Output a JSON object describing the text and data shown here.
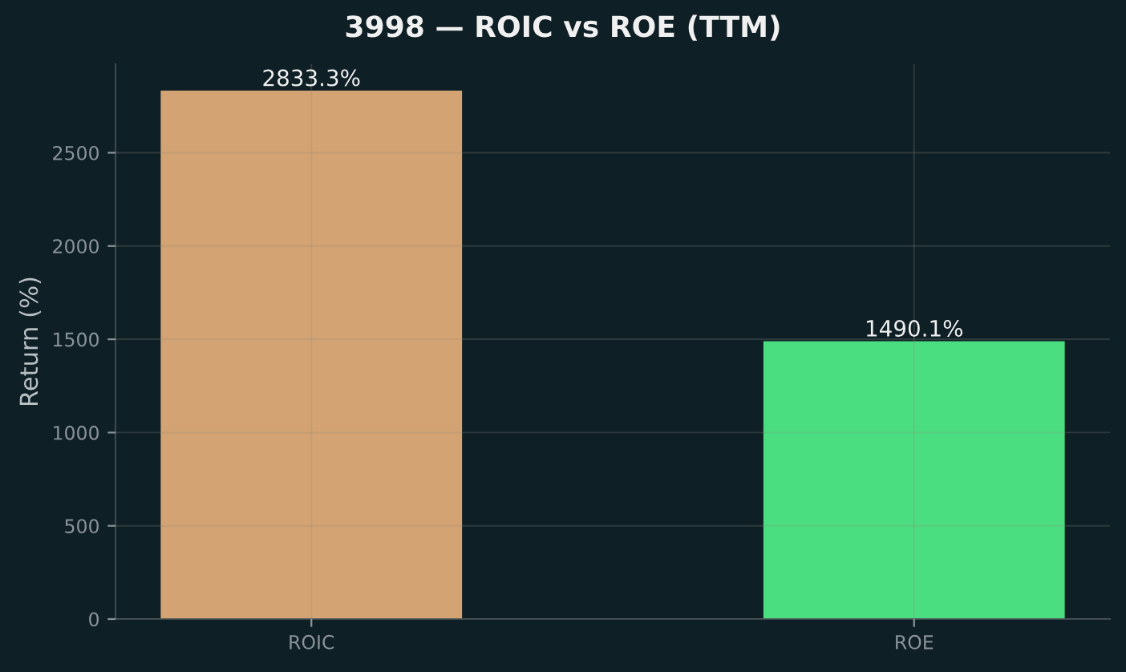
{
  "chart_data": {
    "type": "bar",
    "title": "3998 — ROIC vs ROE (TTM)",
    "ylabel": "Return (%)",
    "categories": [
      "ROIC",
      "ROE"
    ],
    "values": [
      2833.3,
      1490.1
    ],
    "colors": [
      "#d4a373",
      "#4ade80"
    ],
    "value_labels": [
      "2833.3%",
      "1490.1%"
    ],
    "ylim": [
      0,
      2975
    ],
    "yticks": [
      0,
      500,
      1000,
      1500,
      2000,
      2500
    ],
    "grid": true
  }
}
